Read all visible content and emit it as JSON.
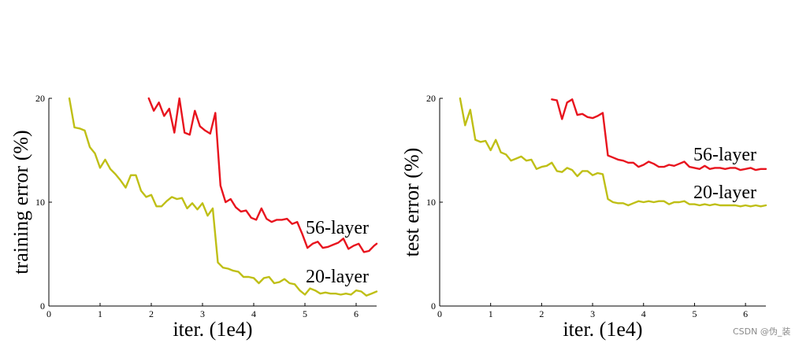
{
  "chart_data": [
    {
      "type": "line",
      "xlabel": "iter. (1e4)",
      "ylabel": "training error (%)",
      "xlim": [
        0,
        6.4
      ],
      "ylim": [
        0,
        20
      ],
      "xticks": [
        0,
        1,
        2,
        3,
        4,
        5,
        6
      ],
      "yticks": [
        0,
        10,
        20
      ],
      "grid": false,
      "series": [
        {
          "name": "56-layer",
          "color": "#e8141e",
          "x": [
            1.95,
            2.05,
            2.15,
            2.25,
            2.35,
            2.45,
            2.55,
            2.65,
            2.75,
            2.85,
            2.95,
            3.05,
            3.15,
            3.25,
            3.35,
            3.45,
            3.55,
            3.65,
            3.75,
            3.85,
            3.95,
            4.05,
            4.15,
            4.25,
            4.35,
            4.45,
            4.55,
            4.65,
            4.75,
            4.85,
            4.95,
            5.05,
            5.15,
            5.25,
            5.35,
            5.45,
            5.55,
            5.65,
            5.75,
            5.85,
            5.95,
            6.05,
            6.15,
            6.25,
            6.35,
            6.4
          ],
          "y": [
            20.0,
            18.8,
            19.6,
            18.3,
            19.0,
            16.7,
            20.0,
            16.7,
            16.5,
            18.8,
            17.3,
            16.9,
            16.6,
            18.6,
            11.6,
            10.0,
            10.3,
            9.5,
            9.1,
            9.2,
            8.5,
            8.3,
            9.4,
            8.4,
            8.1,
            8.3,
            8.3,
            8.4,
            7.9,
            8.1,
            6.9,
            5.6,
            6.0,
            6.2,
            5.6,
            5.7,
            5.9,
            6.1,
            6.5,
            5.5,
            5.8,
            6.0,
            5.2,
            5.3,
            5.8,
            6.0
          ]
        },
        {
          "name": "20-layer",
          "color": "#bfbf16",
          "x": [
            0.4,
            0.5,
            0.6,
            0.7,
            0.8,
            0.9,
            1.0,
            1.1,
            1.2,
            1.3,
            1.4,
            1.5,
            1.6,
            1.7,
            1.8,
            1.9,
            2.0,
            2.1,
            2.2,
            2.3,
            2.4,
            2.5,
            2.6,
            2.7,
            2.8,
            2.9,
            3.0,
            3.1,
            3.2,
            3.3,
            3.4,
            3.5,
            3.6,
            3.7,
            3.8,
            3.9,
            4.0,
            4.1,
            4.2,
            4.3,
            4.4,
            4.5,
            4.6,
            4.7,
            4.8,
            4.9,
            5.0,
            5.1,
            5.2,
            5.3,
            5.4,
            5.5,
            5.6,
            5.7,
            5.8,
            5.9,
            6.0,
            6.1,
            6.2,
            6.3,
            6.4
          ],
          "y": [
            20.0,
            17.2,
            17.1,
            16.9,
            15.3,
            14.7,
            13.3,
            14.1,
            13.2,
            12.7,
            12.1,
            11.4,
            12.6,
            12.6,
            11.1,
            10.5,
            10.7,
            9.6,
            9.6,
            10.1,
            10.5,
            10.3,
            10.4,
            9.4,
            9.9,
            9.3,
            9.9,
            8.7,
            9.4,
            4.2,
            3.7,
            3.6,
            3.4,
            3.3,
            2.8,
            2.8,
            2.7,
            2.2,
            2.7,
            2.8,
            2.2,
            2.3,
            2.6,
            2.2,
            2.1,
            1.5,
            1.1,
            1.7,
            1.5,
            1.2,
            1.3,
            1.2,
            1.2,
            1.1,
            1.2,
            1.1,
            1.5,
            1.4,
            1.0,
            1.2,
            1.4
          ]
        }
      ]
    },
    {
      "type": "line",
      "xlabel": "iter. (1e4)",
      "ylabel": "test error (%)",
      "xlim": [
        0,
        6.4
      ],
      "ylim": [
        0,
        20
      ],
      "xticks": [
        0,
        1,
        2,
        3,
        4,
        5,
        6
      ],
      "yticks": [
        0,
        10,
        20
      ],
      "grid": false,
      "series": [
        {
          "name": "56-layer",
          "color": "#e8141e",
          "x": [
            2.2,
            2.3,
            2.4,
            2.5,
            2.6,
            2.7,
            2.8,
            2.9,
            3.0,
            3.1,
            3.2,
            3.3,
            3.4,
            3.5,
            3.6,
            3.7,
            3.8,
            3.9,
            4.0,
            4.1,
            4.2,
            4.3,
            4.4,
            4.5,
            4.6,
            4.7,
            4.8,
            4.9,
            5.0,
            5.1,
            5.2,
            5.3,
            5.4,
            5.5,
            5.6,
            5.7,
            5.8,
            5.9,
            6.0,
            6.1,
            6.2,
            6.3,
            6.4
          ],
          "y": [
            19.9,
            19.8,
            18.0,
            19.6,
            19.9,
            18.4,
            18.5,
            18.2,
            18.1,
            18.3,
            18.6,
            14.5,
            14.3,
            14.1,
            14.0,
            13.8,
            13.8,
            13.4,
            13.6,
            13.9,
            13.7,
            13.4,
            13.4,
            13.6,
            13.5,
            13.7,
            13.9,
            13.4,
            13.3,
            13.2,
            13.5,
            13.2,
            13.3,
            13.3,
            13.2,
            13.3,
            13.3,
            13.1,
            13.2,
            13.3,
            13.1,
            13.2,
            13.2
          ]
        },
        {
          "name": "20-layer",
          "color": "#bfbf16",
          "x": [
            0.4,
            0.5,
            0.6,
            0.7,
            0.8,
            0.9,
            1.0,
            1.1,
            1.2,
            1.3,
            1.4,
            1.5,
            1.6,
            1.7,
            1.8,
            1.9,
            2.0,
            2.1,
            2.2,
            2.3,
            2.4,
            2.5,
            2.6,
            2.7,
            2.8,
            2.9,
            3.0,
            3.1,
            3.2,
            3.3,
            3.4,
            3.5,
            3.6,
            3.7,
            3.8,
            3.9,
            4.0,
            4.1,
            4.2,
            4.3,
            4.4,
            4.5,
            4.6,
            4.7,
            4.8,
            4.9,
            5.0,
            5.1,
            5.2,
            5.3,
            5.4,
            5.5,
            5.6,
            5.7,
            5.8,
            5.9,
            6.0,
            6.1,
            6.2,
            6.3,
            6.4
          ],
          "y": [
            20.0,
            17.4,
            18.9,
            16.0,
            15.8,
            15.9,
            15.0,
            16.0,
            14.8,
            14.6,
            14.0,
            14.2,
            14.4,
            14.0,
            14.1,
            13.2,
            13.4,
            13.5,
            13.8,
            13.0,
            12.9,
            13.3,
            13.1,
            12.5,
            13.0,
            13.0,
            12.6,
            12.8,
            12.7,
            10.3,
            10.0,
            9.9,
            9.9,
            9.7,
            9.9,
            10.1,
            10.0,
            10.1,
            10.0,
            10.1,
            10.1,
            9.8,
            10.0,
            10.0,
            10.1,
            9.8,
            9.8,
            9.7,
            9.8,
            9.7,
            9.8,
            9.7,
            9.7,
            9.7,
            9.7,
            9.6,
            9.7,
            9.6,
            9.7,
            9.6,
            9.7
          ]
        }
      ]
    }
  ],
  "watermark": "CSDN @伪_装"
}
